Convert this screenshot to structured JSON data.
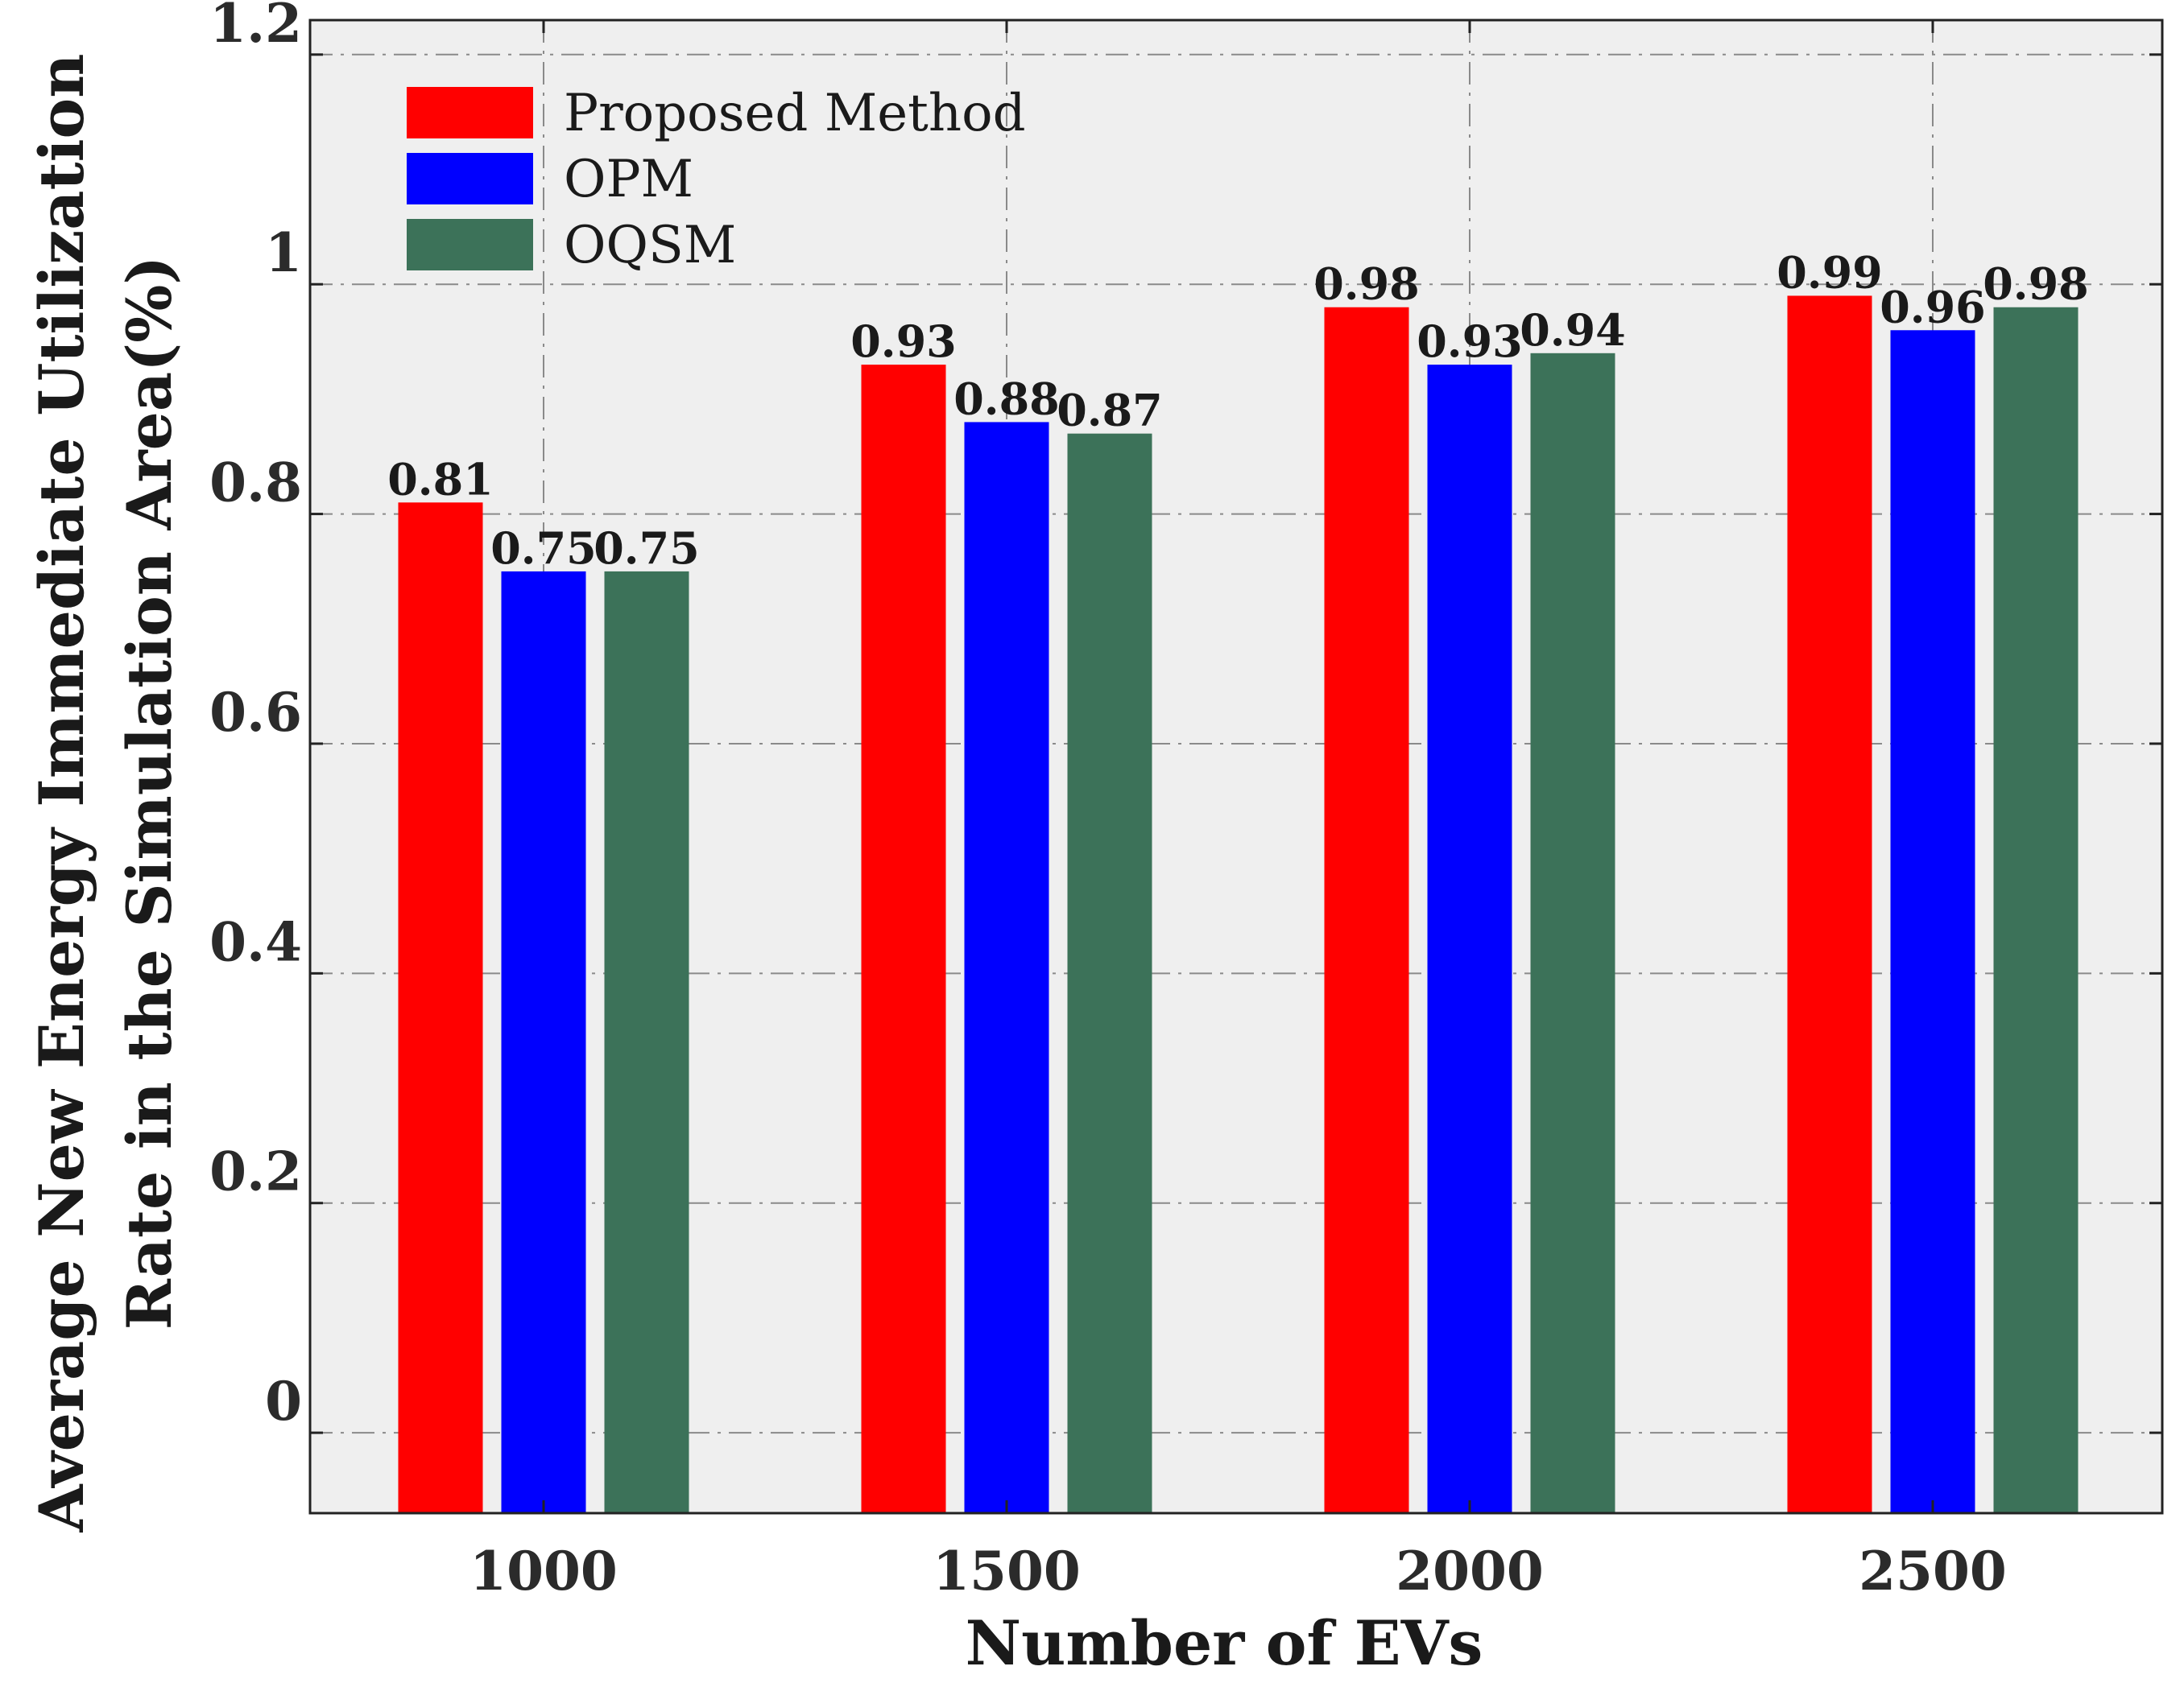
{
  "chart_data": {
    "type": "bar",
    "title": "",
    "xlabel": "Number of EVs",
    "ylabel": [
      "Average New Energy Immediate Utilization",
      "Rate in the Simulation Area(%)"
    ],
    "categories": [
      "1000",
      "1500",
      "2000",
      "2500"
    ],
    "series": [
      {
        "name": "Proposed Method",
        "color": "#ff0000",
        "values": [
          0.81,
          0.93,
          0.98,
          0.99
        ]
      },
      {
        "name": "OPM",
        "color": "#0000ff",
        "values": [
          0.75,
          0.88,
          0.93,
          0.96
        ]
      },
      {
        "name": "OQSM",
        "color": "#3c7259",
        "values": [
          0.75,
          0.87,
          0.94,
          0.98
        ]
      }
    ],
    "bar_labels": [
      [
        "0.81",
        "0.93",
        "0.98",
        "0.99"
      ],
      [
        "0.75",
        "0.88",
        "0.93",
        "0.96"
      ],
      [
        "0.75",
        "0.87",
        "0.94",
        "0.98"
      ]
    ],
    "y_ticks": [
      0,
      0.2,
      0.4,
      0.6,
      0.8,
      1,
      1.2
    ],
    "y_tick_labels": [
      "0",
      "0.2",
      "0.4",
      "0.6",
      "0.8",
      "1",
      "1.2"
    ],
    "ylim": [
      -0.07,
      1.23
    ],
    "grid": true,
    "legend_position": "top-left",
    "background": "#efefef"
  }
}
